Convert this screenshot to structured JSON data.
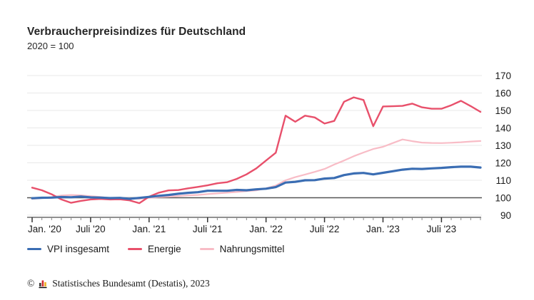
{
  "header": {
    "title": "Verbraucherpreisindizes für Deutschland",
    "subtitle": "2020 = 100"
  },
  "chart_data": {
    "type": "line",
    "title": "Verbraucherpreisindizes für Deutschland",
    "subtitle": "2020 = 100",
    "x_range": {
      "from": "Januar 2020",
      "to": "November 2023",
      "step": "month"
    },
    "x_tick_labels": [
      "Jan. '20",
      "Juli '20",
      "Jan. '21",
      "Juli '21",
      "Jan. '22",
      "Juli '22",
      "Jan. '23",
      "Juli '23"
    ],
    "x_tick_month_indices": [
      0,
      6,
      12,
      18,
      24,
      30,
      36,
      42
    ],
    "y_ticks": [
      90,
      100,
      110,
      120,
      130,
      140,
      150,
      160,
      170
    ],
    "ylim": [
      90,
      170
    ],
    "baseline_value": 100,
    "grid": true,
    "legend_position": "bottom-left",
    "colors": {
      "grid": "#e8e8e8",
      "baseline": "#555555",
      "axis": "#4d4d4d",
      "tick_minor": "#888888",
      "tick_major": "#333333",
      "label": "#1a1a1a"
    },
    "series": [
      {
        "name": "VPI insgesamt",
        "color": "#3a6db3",
        "stroke_width": 3.2,
        "values": [
          99.7,
          100.0,
          100.1,
          100.4,
          100.3,
          100.7,
          100.2,
          100.1,
          99.8,
          99.9,
          99.4,
          99.9,
          100.5,
          101.1,
          101.6,
          102.3,
          102.8,
          103.2,
          104.0,
          104.0,
          104.0,
          104.5,
          104.3,
          104.8,
          105.2,
          106.1,
          108.7,
          109.1,
          110.0,
          110.1,
          111.0,
          111.3,
          113.0,
          113.9,
          114.2,
          113.4,
          114.3,
          115.2,
          116.1,
          116.6,
          116.5,
          116.8,
          117.1,
          117.5,
          117.8,
          117.8,
          117.3
        ]
      },
      {
        "name": "Energie",
        "color": "#e8506b",
        "stroke_width": 2.4,
        "values": [
          105.8,
          104.3,
          102.0,
          99.0,
          97.1,
          98.2,
          99.0,
          99.3,
          99.0,
          99.1,
          98.5,
          96.9,
          100.6,
          102.9,
          104.2,
          104.4,
          105.4,
          106.2,
          107.1,
          108.3,
          108.9,
          110.8,
          113.4,
          116.8,
          121.3,
          125.8,
          147.0,
          143.5,
          147.0,
          146.0,
          142.5,
          144.0,
          155.0,
          157.5,
          156.0,
          141.0,
          152.3,
          152.4,
          152.6,
          153.9,
          151.8,
          151.0,
          151.0,
          153.0,
          155.5,
          152.5,
          149.2
        ]
      },
      {
        "name": "Nahrungsmittel",
        "color": "#f8bcc6",
        "stroke_width": 2.2,
        "values": [
          99.4,
          99.8,
          100.4,
          101.3,
          101.6,
          101.4,
          100.9,
          100.5,
          99.8,
          100.0,
          99.7,
          99.4,
          99.9,
          100.4,
          100.6,
          101.0,
          101.4,
          101.6,
          102.1,
          102.5,
          102.9,
          103.3,
          103.8,
          104.2,
          105.4,
          107.0,
          110.0,
          111.8,
          113.3,
          114.8,
          116.5,
          119.0,
          121.3,
          123.8,
          125.9,
          127.9,
          129.2,
          131.3,
          133.4,
          132.4,
          131.6,
          131.4,
          131.3,
          131.5,
          131.8,
          132.2,
          132.5
        ]
      }
    ]
  },
  "footer": {
    "copyright": "©",
    "logo_icon": "destatis-bar-chart-icon",
    "text": "Statistisches Bundesamt (Destatis), 2023"
  }
}
